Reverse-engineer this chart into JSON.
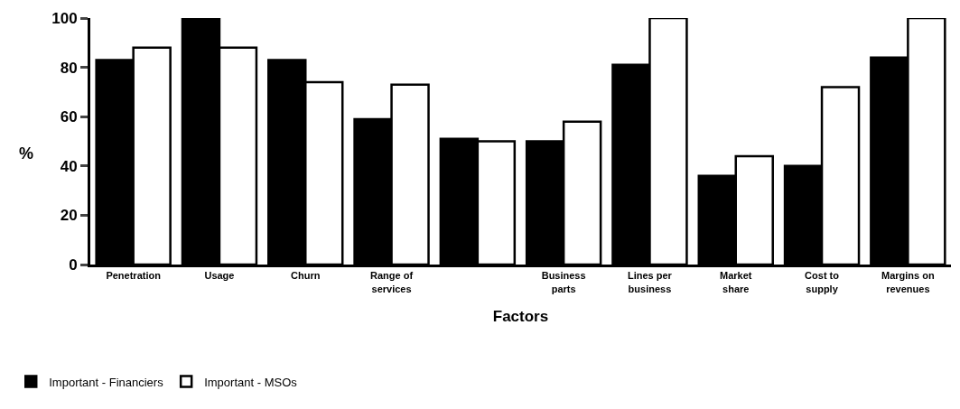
{
  "chart_data": {
    "type": "bar",
    "xlabel": "Factors",
    "ylabel": "%",
    "categories": [
      "Penetration",
      "Usage",
      "Churn",
      "Range of\nservices",
      null,
      "Business\nparts",
      "Lines per\nbusiness",
      "Market\nshare",
      "Cost to\nsupply",
      "Margins on\nrevenues"
    ],
    "series": [
      {
        "name": "Important - Financiers",
        "color": "#000000",
        "values": [
          83,
          100,
          83,
          59,
          51,
          50,
          81,
          36,
          40,
          84
        ]
      },
      {
        "name": "Important - MSOs",
        "color": "#ffffff",
        "values": [
          88,
          88,
          74,
          73,
          50,
          58,
          100,
          44,
          72,
          100
        ]
      }
    ],
    "ylim": [
      0,
      100
    ],
    "yticks": [
      0,
      20,
      40,
      60,
      80,
      100
    ],
    "legend": "bottom left"
  }
}
